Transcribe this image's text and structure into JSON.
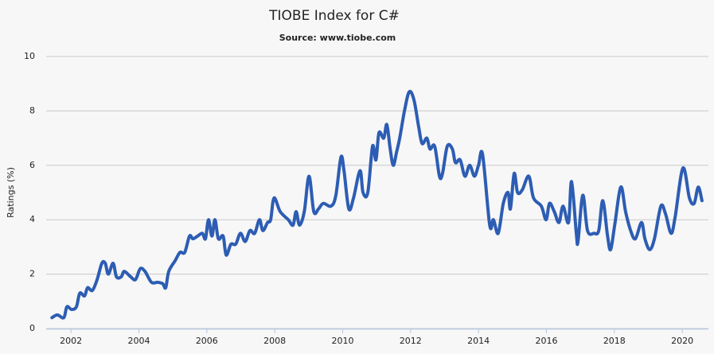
{
  "chart_data": {
    "type": "line",
    "title": "TIOBE Index for C#",
    "subtitle": "Source: www.tiobe.com",
    "y_label": "Ratings (%)",
    "xlim": [
      2001.27,
      2020.77
    ],
    "xticks": [
      2002,
      2004,
      2006,
      2008,
      2010,
      2012,
      2014,
      2016,
      2018,
      2020
    ],
    "ylim": [
      0,
      10
    ],
    "yticks": [
      0,
      2,
      4,
      6,
      8,
      10
    ],
    "grid": true,
    "series": [
      {
        "color": "#2d5db3",
        "x": [
          2001.44,
          2001.6,
          2001.79,
          2001.88,
          2002.02,
          2002.16,
          2002.26,
          2002.4,
          2002.49,
          2002.63,
          2002.77,
          2002.91,
          2003.01,
          2003.1,
          2003.24,
          2003.34,
          2003.48,
          2003.57,
          2003.76,
          2003.9,
          2004.04,
          2004.18,
          2004.37,
          2004.55,
          2004.7,
          2004.79,
          2004.88,
          2005.07,
          2005.21,
          2005.35,
          2005.49,
          2005.59,
          2005.73,
          2005.87,
          2005.96,
          2006.05,
          2006.15,
          2006.24,
          2006.34,
          2006.48,
          2006.57,
          2006.71,
          2006.85,
          2006.99,
          2007.13,
          2007.27,
          2007.41,
          2007.55,
          2007.65,
          2007.79,
          2007.88,
          2007.98,
          2008.16,
          2008.4,
          2008.54,
          2008.63,
          2008.73,
          2008.87,
          2009.01,
          2009.15,
          2009.29,
          2009.43,
          2009.66,
          2009.8,
          2009.95,
          2010.04,
          2010.18,
          2010.32,
          2010.51,
          2010.6,
          2010.74,
          2010.88,
          2010.98,
          2011.07,
          2011.21,
          2011.3,
          2011.4,
          2011.49,
          2011.59,
          2011.68,
          2011.82,
          2011.96,
          2012.1,
          2012.24,
          2012.34,
          2012.48,
          2012.57,
          2012.71,
          2012.85,
          2012.94,
          2013.08,
          2013.23,
          2013.32,
          2013.46,
          2013.6,
          2013.74,
          2013.88,
          2014.0,
          2014.12,
          2014.33,
          2014.44,
          2014.58,
          2014.73,
          2014.87,
          2014.94,
          2015.05,
          2015.15,
          2015.29,
          2015.48,
          2015.62,
          2015.85,
          2015.99,
          2016.09,
          2016.23,
          2016.37,
          2016.49,
          2016.65,
          2016.74,
          2016.88,
          2016.93,
          2017.07,
          2017.21,
          2017.4,
          2017.54,
          2017.66,
          2017.8,
          2017.89,
          2018.01,
          2018.19,
          2018.33,
          2018.48,
          2018.62,
          2018.8,
          2018.9,
          2019.04,
          2019.18,
          2019.37,
          2019.51,
          2019.67,
          2019.79,
          2020.02,
          2020.21,
          2020.35,
          2020.47,
          2020.58
        ],
        "values": [
          0.4,
          0.5,
          0.4,
          0.8,
          0.7,
          0.8,
          1.3,
          1.2,
          1.5,
          1.4,
          1.8,
          2.4,
          2.4,
          2.0,
          2.4,
          1.9,
          1.9,
          2.1,
          1.9,
          1.8,
          2.2,
          2.1,
          1.7,
          1.7,
          1.65,
          1.5,
          2.1,
          2.5,
          2.8,
          2.8,
          3.4,
          3.3,
          3.4,
          3.5,
          3.3,
          4.0,
          3.4,
          4.0,
          3.3,
          3.4,
          2.7,
          3.1,
          3.1,
          3.5,
          3.2,
          3.6,
          3.5,
          4.0,
          3.6,
          3.9,
          4.0,
          4.8,
          4.3,
          4.0,
          3.8,
          4.3,
          3.8,
          4.3,
          5.6,
          4.3,
          4.4,
          4.6,
          4.5,
          4.9,
          6.3,
          5.8,
          4.4,
          4.8,
          5.8,
          5.0,
          5.0,
          6.7,
          6.2,
          7.2,
          7.0,
          7.5,
          6.6,
          6.0,
          6.5,
          7.0,
          8.0,
          8.7,
          8.4,
          7.4,
          6.8,
          7.0,
          6.6,
          6.7,
          5.6,
          5.7,
          6.7,
          6.6,
          6.1,
          6.2,
          5.6,
          6.0,
          5.6,
          6.0,
          6.4,
          3.8,
          4.0,
          3.5,
          4.6,
          5.0,
          4.4,
          5.7,
          5.0,
          5.1,
          5.6,
          4.8,
          4.5,
          4.0,
          4.6,
          4.3,
          3.9,
          4.5,
          3.9,
          5.4,
          3.5,
          3.2,
          4.9,
          3.6,
          3.5,
          3.6,
          4.7,
          3.4,
          2.9,
          3.8,
          5.2,
          4.3,
          3.6,
          3.3,
          3.9,
          3.3,
          2.9,
          3.3,
          4.5,
          4.2,
          3.5,
          4.1,
          5.9,
          4.8,
          4.6,
          5.2,
          4.7
        ]
      }
    ]
  }
}
